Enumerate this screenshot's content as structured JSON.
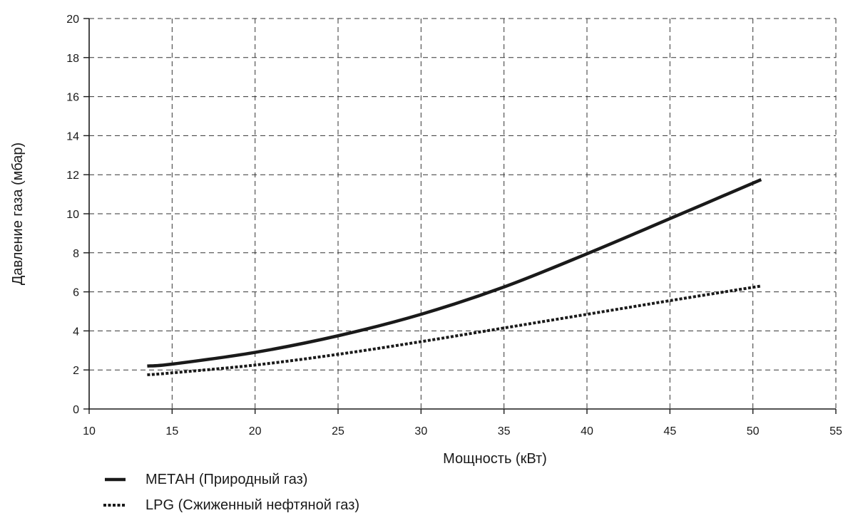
{
  "chart_data": {
    "type": "line",
    "title": "",
    "xlabel": "Мощность (кВт)",
    "ylabel": "Давление газа (мбар)",
    "xlim": [
      10,
      55
    ],
    "ylim": [
      0,
      20
    ],
    "x_ticks": [
      10,
      15,
      20,
      25,
      30,
      35,
      40,
      45,
      50,
      55
    ],
    "y_ticks": [
      0,
      2,
      4,
      6,
      8,
      10,
      12,
      14,
      16,
      18,
      20
    ],
    "grid": true,
    "grid_style": "dashed",
    "legend_position": "bottom-left",
    "series": [
      {
        "name": "МЕТАН (Природный газ)",
        "line_style": "solid",
        "color": "#1a1a1a",
        "x": [
          13.5,
          15,
          20,
          25,
          30,
          35,
          40,
          45,
          50.5
        ],
        "y": [
          2.2,
          2.3,
          2.9,
          3.75,
          4.85,
          6.25,
          7.95,
          9.75,
          11.75
        ]
      },
      {
        "name": "LPG (Сжиженный нефтяной газ)",
        "line_style": "dotted",
        "color": "#1a1a1a",
        "x": [
          13.5,
          15,
          20,
          25,
          30,
          35,
          40,
          45,
          50.5
        ],
        "y": [
          1.75,
          1.85,
          2.25,
          2.8,
          3.45,
          4.15,
          4.85,
          5.55,
          6.3
        ]
      }
    ]
  }
}
